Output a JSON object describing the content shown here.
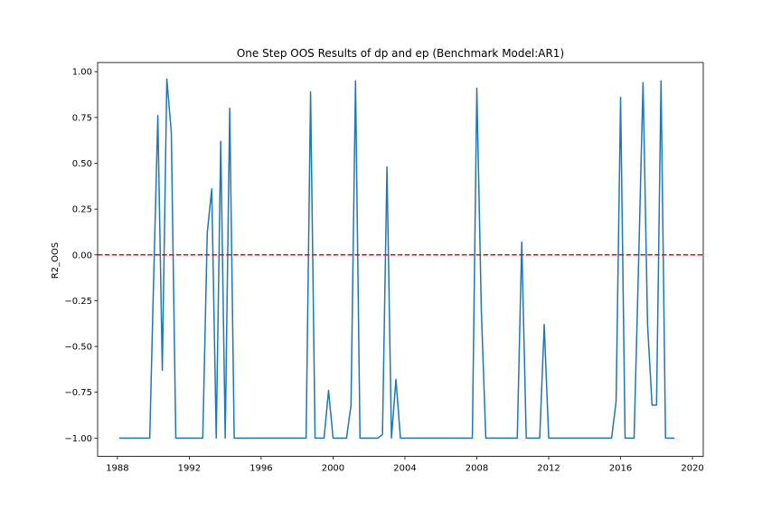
{
  "chart_data": {
    "type": "line",
    "title": "One Step OOS Results of dp and ep (Benchmark Model:AR1)",
    "xlabel": "",
    "ylabel": "R2_OOS",
    "xlim": [
      1986.9,
      2020.6
    ],
    "ylim": [
      -1.1,
      1.05
    ],
    "xticks": [
      1988,
      1992,
      1996,
      2000,
      2004,
      2008,
      2012,
      2016,
      2020
    ],
    "xtick_labels": [
      "1988",
      "1992",
      "1996",
      "2000",
      "2004",
      "2008",
      "2012",
      "2016",
      "2020"
    ],
    "yticks": [
      -1.0,
      -0.75,
      -0.5,
      -0.25,
      0.0,
      0.25,
      0.5,
      0.75,
      1.0
    ],
    "ytick_labels": [
      "−1.00",
      "−0.75",
      "−0.50",
      "−0.25",
      "0.00",
      "0.25",
      "0.50",
      "0.75",
      "1.00"
    ],
    "grid": false,
    "series": [
      {
        "color": "#1f77b4",
        "x": [
          1988.1,
          1989.8,
          1990.0,
          1990.25,
          1990.5,
          1990.75,
          1991.0,
          1991.25,
          1991.5,
          1992.0,
          1992.75,
          1993.0,
          1993.25,
          1993.5,
          1993.75,
          1994.0,
          1994.25,
          1994.5,
          1998.5,
          1998.75,
          1999.0,
          1999.5,
          1999.75,
          2000.0,
          2000.75,
          2001.0,
          2001.25,
          2001.5,
          2002.5,
          2002.75,
          2003.0,
          2003.25,
          2003.5,
          2003.75,
          2007.75,
          2008.0,
          2008.25,
          2008.5,
          2010.25,
          2010.5,
          2010.75,
          2011.5,
          2011.75,
          2012.0,
          2015.5,
          2015.75,
          2016.0,
          2016.25,
          2016.75,
          2017.0,
          2017.25,
          2017.5,
          2017.75,
          2018.0,
          2018.25,
          2018.5,
          2019.0
        ],
        "y": [
          -1.0,
          -1.0,
          -0.2,
          0.76,
          -0.63,
          0.96,
          0.67,
          -1.0,
          -1.0,
          -1.0,
          -1.0,
          0.12,
          0.36,
          -1.0,
          0.62,
          -1.0,
          0.8,
          -1.0,
          -1.0,
          0.89,
          -1.0,
          -1.0,
          -0.74,
          -1.0,
          -1.0,
          -0.82,
          0.95,
          -1.0,
          -1.0,
          -0.98,
          0.48,
          -1.0,
          -0.68,
          -1.0,
          -1.0,
          0.91,
          -0.3,
          -1.0,
          -1.0,
          0.07,
          -1.0,
          -1.0,
          -0.38,
          -1.0,
          -1.0,
          -0.8,
          0.86,
          -1.0,
          -1.0,
          -0.05,
          0.94,
          -0.38,
          -0.82,
          -0.82,
          0.95,
          -1.0,
          -1.0
        ]
      }
    ],
    "reference_line": {
      "y": 0.0,
      "color": "#ff0000",
      "style": "dashed"
    }
  }
}
